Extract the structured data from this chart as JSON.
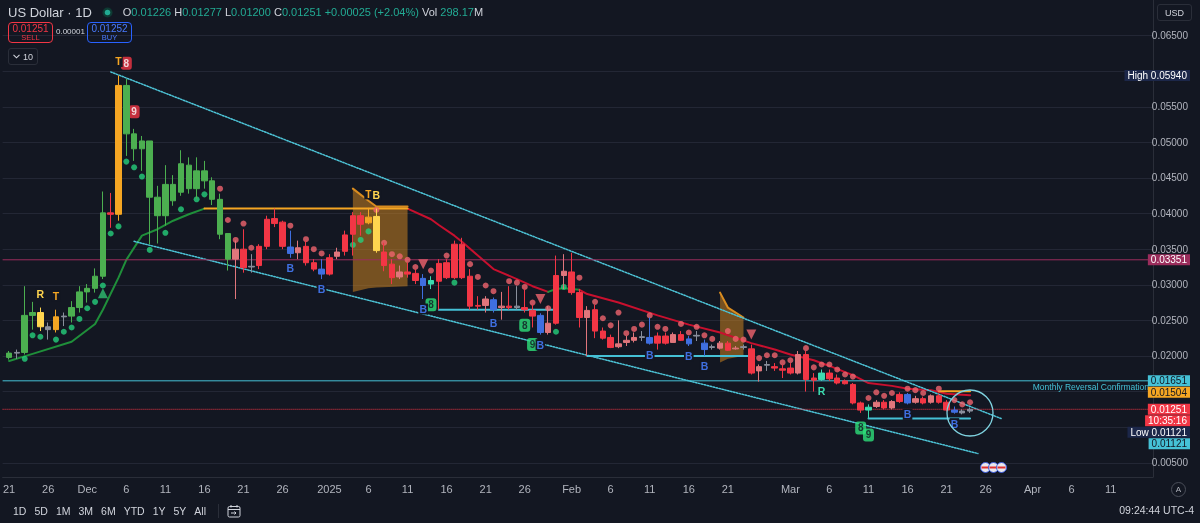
{
  "chart_data": {
    "type": "candlestick",
    "title": "US Dollar · 1D",
    "subtitle": "O0.01226 H0.01277 L0.01200 C0.01251 +0.00025 (+2.04%) Vol 298.17M",
    "x": [
      "2024-11-21",
      "2024-11-22",
      "2024-11-23",
      "2024-11-24",
      "2024-11-25",
      "2024-11-26",
      "2024-11-27",
      "2024-11-28",
      "2024-11-29",
      "2024-11-30",
      "2024-12-01",
      "2024-12-02",
      "2024-12-03",
      "2024-12-04",
      "2024-12-05",
      "2024-12-06",
      "2024-12-07",
      "2024-12-08",
      "2024-12-09",
      "2024-12-10",
      "2024-12-11",
      "2024-12-12",
      "2024-12-13",
      "2024-12-14",
      "2024-12-15",
      "2024-12-16",
      "2024-12-17",
      "2024-12-18",
      "2024-12-19",
      "2024-12-20",
      "2024-12-21",
      "2024-12-22",
      "2024-12-23",
      "2024-12-24",
      "2024-12-25",
      "2024-12-26",
      "2024-12-27",
      "2024-12-28",
      "2024-12-29",
      "2024-12-30",
      "2024-12-31",
      "2025-01-01",
      "2025-01-02",
      "2025-01-03",
      "2025-01-04",
      "2025-01-05",
      "2025-01-06",
      "2025-01-07",
      "2025-01-08",
      "2025-01-09",
      "2025-01-10",
      "2025-01-11",
      "2025-01-12",
      "2025-01-13",
      "2025-01-14",
      "2025-01-15",
      "2025-01-16",
      "2025-01-17",
      "2025-01-18",
      "2025-01-19",
      "2025-01-20",
      "2025-01-21",
      "2025-01-22",
      "2025-01-23",
      "2025-01-24",
      "2025-01-25",
      "2025-01-26",
      "2025-01-27",
      "2025-01-28",
      "2025-01-29",
      "2025-01-30",
      "2025-01-31",
      "2025-02-01",
      "2025-02-02",
      "2025-02-03",
      "2025-02-04",
      "2025-02-05",
      "2025-02-06",
      "2025-02-07",
      "2025-02-08",
      "2025-02-09",
      "2025-02-10",
      "2025-02-11",
      "2025-02-12",
      "2025-02-13",
      "2025-02-14",
      "2025-02-15",
      "2025-02-16",
      "2025-02-17",
      "2025-02-18",
      "2025-02-19",
      "2025-02-20",
      "2025-02-21",
      "2025-02-22",
      "2025-02-23",
      "2025-02-24",
      "2025-02-25",
      "2025-02-26",
      "2025-02-27",
      "2025-02-28",
      "2025-03-01",
      "2025-03-02",
      "2025-03-03",
      "2025-03-04",
      "2025-03-05",
      "2025-03-06",
      "2025-03-07",
      "2025-03-08",
      "2025-03-09",
      "2025-03-10",
      "2025-03-11",
      "2025-03-12",
      "2025-03-13",
      "2025-03-14",
      "2025-03-15",
      "2025-03-16",
      "2025-03-17",
      "2025-03-18",
      "2025-03-19",
      "2025-03-20",
      "2025-03-21",
      "2025-03-22",
      "2025-03-23",
      "2025-03-24"
    ],
    "ohlc": [
      [
        0.0198,
        0.0207,
        0.0195,
        0.0204
      ],
      [
        0.0204,
        0.0209,
        0.0196,
        0.0205
      ],
      [
        0.0205,
        0.0298,
        0.0202,
        0.0257
      ],
      [
        0.0257,
        0.0276,
        0.0237,
        0.0261
      ],
      [
        0.0241,
        0.0268,
        0.0235,
        0.0261
      ],
      [
        0.0237,
        0.0247,
        0.0223,
        0.0241
      ],
      [
        0.0237,
        0.0265,
        0.0233,
        0.0255
      ],
      [
        0.0255,
        0.0261,
        0.0242,
        0.0256
      ],
      [
        0.0256,
        0.0277,
        0.0247,
        0.0268
      ],
      [
        0.0268,
        0.0298,
        0.0261,
        0.029
      ],
      [
        0.029,
        0.0301,
        0.0275,
        0.0295
      ],
      [
        0.0295,
        0.0323,
        0.0289,
        0.0312
      ],
      [
        0.0312,
        0.0431,
        0.0308,
        0.0401
      ],
      [
        0.0401,
        0.0429,
        0.038,
        0.0399
      ],
      [
        0.0399,
        0.0594,
        0.039,
        0.058
      ],
      [
        0.0512,
        0.0589,
        0.0481,
        0.058
      ],
      [
        0.0491,
        0.0519,
        0.0474,
        0.0512
      ],
      [
        0.0491,
        0.0509,
        0.046,
        0.0502
      ],
      [
        0.0423,
        0.0502,
        0.0357,
        0.0502
      ],
      [
        0.0397,
        0.0439,
        0.0358,
        0.0423
      ],
      [
        0.0397,
        0.0468,
        0.0383,
        0.0441
      ],
      [
        0.0418,
        0.0454,
        0.0411,
        0.0441
      ],
      [
        0.043,
        0.0489,
        0.0425,
        0.047
      ],
      [
        0.0435,
        0.0479,
        0.0428,
        0.0468
      ],
      [
        0.0435,
        0.0479,
        0.0421,
        0.046
      ],
      [
        0.0446,
        0.0474,
        0.0435,
        0.046
      ],
      [
        0.042,
        0.0451,
        0.0412,
        0.0446
      ],
      [
        0.0371,
        0.0428,
        0.0364,
        0.042
      ],
      [
        0.0336,
        0.0372,
        0.032,
        0.0372
      ],
      [
        0.035,
        0.0362,
        0.028,
        0.0336
      ],
      [
        0.035,
        0.0378,
        0.0317,
        0.0324
      ],
      [
        0.0325,
        0.0343,
        0.0317,
        0.0326
      ],
      [
        0.0354,
        0.0357,
        0.0322,
        0.0327
      ],
      [
        0.0392,
        0.0397,
        0.035,
        0.0354
      ],
      [
        0.0393,
        0.0407,
        0.0381,
        0.0386
      ],
      [
        0.0388,
        0.039,
        0.035,
        0.0354
      ],
      [
        0.0353,
        0.0376,
        0.0338,
        0.0344
      ],
      [
        0.0352,
        0.0362,
        0.0336,
        0.0345
      ],
      [
        0.0354,
        0.0362,
        0.0327,
        0.0331
      ],
      [
        0.0331,
        0.0336,
        0.0319,
        0.0322
      ],
      [
        0.0322,
        0.0336,
        0.0308,
        0.0315
      ],
      [
        0.0338,
        0.0343,
        0.0313,
        0.0315
      ],
      [
        0.0346,
        0.0352,
        0.0336,
        0.034
      ],
      [
        0.037,
        0.0376,
        0.0341,
        0.0347
      ],
      [
        0.0397,
        0.0402,
        0.0341,
        0.0371
      ],
      [
        0.0397,
        0.0402,
        0.0369,
        0.0385
      ],
      [
        0.0387,
        0.0408,
        0.0385,
        0.0395
      ],
      [
        0.0348,
        0.0407,
        0.0345,
        0.0396
      ],
      [
        0.0346,
        0.0359,
        0.0319,
        0.0327
      ],
      [
        0.0329,
        0.0336,
        0.0301,
        0.031
      ],
      [
        0.0318,
        0.0327,
        0.0308,
        0.0311
      ],
      [
        0.0318,
        0.0331,
        0.031,
        0.0315
      ],
      [
        0.0316,
        0.0322,
        0.0301,
        0.0306
      ],
      [
        0.0309,
        0.0315,
        0.028,
        0.0299
      ],
      [
        0.0301,
        0.0312,
        0.0294,
        0.0306
      ],
      [
        0.033,
        0.0336,
        0.0265,
        0.0305
      ],
      [
        0.0331,
        0.0336,
        0.0308,
        0.031
      ],
      [
        0.0357,
        0.0362,
        0.0308,
        0.031
      ],
      [
        0.0357,
        0.0366,
        0.0308,
        0.031
      ],
      [
        0.0312,
        0.0322,
        0.0265,
        0.027
      ],
      [
        0.0271,
        0.0284,
        0.0265,
        0.027
      ],
      [
        0.028,
        0.0284,
        0.0261,
        0.0271
      ],
      [
        0.0279,
        0.0282,
        0.0261,
        0.0265
      ],
      [
        0.027,
        0.029,
        0.0251,
        0.0268
      ],
      [
        0.027,
        0.0298,
        0.0265,
        0.0268
      ],
      [
        0.0268,
        0.0298,
        0.0265,
        0.027
      ],
      [
        0.0268,
        0.0294,
        0.0261,
        0.0265
      ],
      [
        0.0264,
        0.0272,
        0.024,
        0.0256
      ],
      [
        0.0257,
        0.026,
        0.023,
        0.0233
      ],
      [
        0.0246,
        0.027,
        0.023,
        0.0233
      ],
      [
        0.0313,
        0.0341,
        0.0244,
        0.0246
      ],
      [
        0.0319,
        0.0343,
        0.0294,
        0.0313
      ],
      [
        0.0318,
        0.0345,
        0.0286,
        0.0289
      ],
      [
        0.0289,
        0.0294,
        0.024,
        0.0254
      ],
      [
        0.0264,
        0.027,
        0.02,
        0.0254
      ],
      [
        0.0265,
        0.0272,
        0.0225,
        0.0235
      ],
      [
        0.0235,
        0.024,
        0.0223,
        0.0225
      ],
      [
        0.0226,
        0.023,
        0.0211,
        0.0212
      ],
      [
        0.0217,
        0.025,
        0.0211,
        0.0213
      ],
      [
        0.0222,
        0.0228,
        0.0214,
        0.0219
      ],
      [
        0.0226,
        0.0233,
        0.0219,
        0.0222
      ],
      [
        0.0226,
        0.0235,
        0.0221,
        0.0227
      ],
      [
        0.0226,
        0.0254,
        0.0216,
        0.0218
      ],
      [
        0.0228,
        0.0233,
        0.0209,
        0.0218
      ],
      [
        0.0228,
        0.0233,
        0.0216,
        0.0218
      ],
      [
        0.023,
        0.0233,
        0.0219,
        0.0219
      ],
      [
        0.023,
        0.0235,
        0.0221,
        0.0222
      ],
      [
        0.0224,
        0.0228,
        0.0214,
        0.0217
      ],
      [
        0.0228,
        0.0235,
        0.0221,
        0.0229
      ],
      [
        0.0218,
        0.0223,
        0.02,
        0.0209
      ],
      [
        0.0212,
        0.0216,
        0.0209,
        0.0213
      ],
      [
        0.0218,
        0.0221,
        0.0209,
        0.0211
      ],
      [
        0.0218,
        0.0221,
        0.0207,
        0.0208
      ],
      [
        0.0211,
        0.0214,
        0.0209,
        0.021
      ],
      [
        0.0212,
        0.0216,
        0.0209,
        0.0213
      ],
      [
        0.021,
        0.0216,
        0.0174,
        0.0176
      ],
      [
        0.0185,
        0.0188,
        0.0164,
        0.0179
      ],
      [
        0.0187,
        0.0193,
        0.0179,
        0.0188
      ],
      [
        0.0185,
        0.019,
        0.0179,
        0.0183
      ],
      [
        0.0182,
        0.0188,
        0.0169,
        0.018
      ],
      [
        0.0183,
        0.019,
        0.0174,
        0.0176
      ],
      [
        0.0202,
        0.0207,
        0.0174,
        0.0176
      ],
      [
        0.0202,
        0.0207,
        0.015,
        0.0167
      ],
      [
        0.0169,
        0.0176,
        0.015,
        0.0166
      ],
      [
        0.0167,
        0.0181,
        0.0165,
        0.0176
      ],
      [
        0.0176,
        0.0181,
        0.0165,
        0.0168
      ],
      [
        0.0169,
        0.0174,
        0.016,
        0.0162
      ],
      [
        0.0165,
        0.0167,
        0.016,
        0.0161
      ],
      [
        0.016,
        0.0162,
        0.0132,
        0.0134
      ],
      [
        0.0134,
        0.0136,
        0.012,
        0.0124
      ],
      [
        0.0124,
        0.0132,
        0.01121,
        0.0128
      ],
      [
        0.0135,
        0.0138,
        0.0127,
        0.0129
      ],
      [
        0.0135,
        0.0138,
        0.0125,
        0.0127
      ],
      [
        0.0136,
        0.0138,
        0.0125,
        0.0127
      ],
      [
        0.0146,
        0.0149,
        0.0134,
        0.0136
      ],
      [
        0.0146,
        0.0148,
        0.0132,
        0.0134
      ],
      [
        0.014,
        0.0144,
        0.0133,
        0.0135
      ],
      [
        0.014,
        0.0143,
        0.0132,
        0.0134
      ],
      [
        0.0144,
        0.0146,
        0.0133,
        0.0135
      ],
      [
        0.0144,
        0.0147,
        0.0133,
        0.0135
      ],
      [
        0.0135,
        0.0138,
        0.0122,
        0.0124
      ],
      [
        0.0124,
        0.0129,
        0.0119,
        0.0121
      ],
      [
        0.012,
        0.0125,
        0.0118,
        0.01226
      ],
      [
        0.01226,
        0.01277,
        0.012,
        0.01251
      ]
    ],
    "colors": [
      "#4caf50",
      "#8a8f9c",
      "#4caf50",
      "#4caf50",
      "#ffd54f",
      "#8a8f9c",
      "#f5a623",
      "#8a8f9c",
      "#4caf50",
      "#4caf50",
      "#4caf50",
      "#4caf50",
      "#4caf50",
      "#f23645",
      "#f5a623",
      "#4caf50",
      "#4caf50",
      "#4caf50",
      "#4caf50",
      "#4caf50",
      "#4caf50",
      "#4caf50",
      "#4caf50",
      "#4caf50",
      "#4caf50",
      "#4caf50",
      "#4caf50",
      "#4caf50",
      "#4caf50",
      "#e0767c",
      "#f23645",
      "#8a8f9c",
      "#f23645",
      "#f23645",
      "#f23645",
      "#f23645",
      "#3f6fe0",
      "#e0767c",
      "#f23645",
      "#f23645",
      "#3f6fe0",
      "#f23645",
      "#e0767c",
      "#f23645",
      "#f23645",
      "#f23645",
      "#f5a623",
      "#ffd54f",
      "#f23645",
      "#f23645",
      "#e0767c",
      "#f23645",
      "#f23645",
      "#3f6fe0",
      "#3ddbb0",
      "#f23645",
      "#f23645",
      "#f23645",
      "#f23645",
      "#f23645",
      "#f23645",
      "#e0767c",
      "#3f6fe0",
      "#e0767c",
      "#f23645",
      "#8a8f9c",
      "#f23645",
      "#f23645",
      "#3f6fe0",
      "#e0767c",
      "#f23645",
      "#e0767c",
      "#f23645",
      "#f23645",
      "#e0767c",
      "#f23645",
      "#f23645",
      "#f23645",
      "#e0767c",
      "#e0767c",
      "#e0767c",
      "#8a8f9c",
      "#3f6fe0",
      "#f23645",
      "#f23645",
      "#e0767c",
      "#f23645",
      "#3f6fe0",
      "#8a8f9c",
      "#3f6fe0",
      "#8a8f9c",
      "#e0767c",
      "#f23645",
      "#e0767c",
      "#8a8f9c",
      "#f23645",
      "#e0767c",
      "#8a8f9c",
      "#f23645",
      "#f23645",
      "#f23645",
      "#e0767c",
      "#f23645",
      "#f23645",
      "#3ddbb0",
      "#f23645",
      "#f23645",
      "#f23645",
      "#f23645",
      "#f23645",
      "#3ddbb0",
      "#e0767c",
      "#f23645",
      "#e0767c",
      "#f23645",
      "#3f6fe0",
      "#e0767c",
      "#f23645",
      "#e0767c",
      "#f23645",
      "#f23645",
      "#3f6fe0",
      "#8a8f9c",
      "#8a8f9c"
    ],
    "series": [
      {
        "type": "line",
        "color": "#d98c1f",
        "x": [
          "2025-01-04",
          "2025-01-06",
          "2025-01-07",
          "2025-01-11"
        ],
        "values": [
          0.0435,
          0.0418,
          0.041,
          0.041
        ],
        "upper": [
          0.0435,
          0.0418,
          0.041,
          0.041
        ],
        "lower": [
          0.029,
          0.0295,
          0.0296,
          0.0298
        ]
      },
      {
        "type": "line",
        "color": "#d98c1f",
        "x": [
          "2025-02-20",
          "2025-02-21",
          "2025-02-23"
        ],
        "values": [
          0.0289,
          0.0268,
          0.0254
        ],
        "upper": [
          0.0289,
          0.0268,
          0.0254
        ],
        "lower": [
          0.0191,
          0.0196,
          0.02
        ]
      },
      {
        "type": "line",
        "color": "#1f8f3a",
        "x": [
          "2024-11-21",
          "2024-11-24",
          "2024-11-29",
          "2024-12-02",
          "2024-12-03",
          "2024-12-05",
          "2024-12-06",
          "2024-12-08",
          "2024-12-10",
          "2024-12-12",
          "2024-12-14",
          "2024-12-16"
        ],
        "values": [
          0.0193,
          0.0203,
          0.022,
          0.0245,
          0.0265,
          0.031,
          0.0335,
          0.0369,
          0.0378,
          0.039,
          0.0399,
          0.0407
        ]
      },
      {
        "type": "line",
        "color": "#c8102e",
        "x": [
          "2025-01-11",
          "2025-01-14",
          "2025-01-15",
          "2025-01-17",
          "2025-01-18",
          "2025-01-20",
          "2025-01-22",
          "2025-01-25",
          "2025-01-27",
          "2025-01-29"
        ],
        "values": [
          0.0407,
          0.0392,
          0.0384,
          0.0369,
          0.036,
          0.0341,
          0.0322,
          0.0308,
          0.0298,
          0.029
        ]
      },
      {
        "type": "line",
        "color": "#1f8f3a",
        "x": [
          "2025-01-29",
          "2025-01-30",
          "2025-01-31",
          "2025-02-01",
          "2025-02-02"
        ],
        "values": [
          0.029,
          0.0294,
          0.0295,
          0.0294,
          0.0293
        ]
      },
      {
        "type": "line",
        "color": "#c8102e",
        "x": [
          "2025-02-02",
          "2025-02-03",
          "2025-02-07",
          "2025-02-12",
          "2025-02-16",
          "2025-02-20",
          "2025-02-24",
          "2025-02-27",
          "2025-03-01",
          "2025-03-04",
          "2025-03-06",
          "2025-03-09",
          "2025-03-11",
          "2025-03-14",
          "2025-03-16",
          "2025-03-19",
          "2025-03-21",
          "2025-03-24"
        ],
        "values": [
          0.0293,
          0.0287,
          0.0275,
          0.0257,
          0.0244,
          0.0233,
          0.0218,
          0.0209,
          0.0202,
          0.0194,
          0.0186,
          0.0173,
          0.0162,
          0.0158,
          0.0154,
          0.0152,
          0.0147,
          0.0145
        ]
      },
      {
        "type": "line",
        "color": "#4dc3d6",
        "line_style": "dotted",
        "x": [
          "2024-12-04",
          "2025-03-28"
        ],
        "values": [
          0.0599,
          0.0112
        ]
      },
      {
        "type": "line",
        "color": "#4dc3d6",
        "line_style": "dotted",
        "x": [
          "2024-12-07",
          "2025-03-25"
        ],
        "values": [
          0.0361,
          0.0063
        ]
      },
      {
        "type": "line",
        "color": "#f5a623",
        "x": [
          "2024-12-16",
          "2025-01-11"
        ],
        "values": [
          0.0407,
          0.0407
        ]
      },
      {
        "type": "line",
        "color": "#45c1d6",
        "x": [
          "2025-01-15",
          "2025-01-30"
        ],
        "values": [
          0.0265,
          0.0265
        ]
      },
      {
        "type": "line",
        "color": "#45c1d6",
        "x": [
          "2025-02-03",
          "2025-02-24"
        ],
        "values": [
          0.02,
          0.02
        ]
      },
      {
        "type": "line",
        "color": "#45c1d6",
        "x": [
          "2025-03-11",
          "2025-03-24"
        ],
        "values": [
          0.01121,
          0.01121
        ]
      },
      {
        "type": "line",
        "color": "#f5a623",
        "x": [
          "2025-03-20",
          "2025-03-24"
        ],
        "values": [
          0.01504,
          0.01504
        ]
      },
      {
        "type": "scatter",
        "marker": "circle",
        "color": "#26d07c",
        "x": [
          "2024-11-23",
          "2024-11-24",
          "2024-11-25",
          "2024-11-27",
          "2024-11-28",
          "2024-11-29",
          "2024-11-30",
          "2024-12-01",
          "2024-12-02",
          "2024-12-03",
          "2024-12-04",
          "2024-12-05",
          "2024-12-06",
          "2024-12-07",
          "2024-12-08",
          "2024-12-09",
          "2024-12-11",
          "2024-12-13",
          "2024-12-15",
          "2024-12-16",
          "2025-01-04",
          "2025-01-05",
          "2025-01-06",
          "2025-01-17",
          "2025-01-30",
          "2025-01-31"
        ],
        "values": [
          0.0196,
          0.0229,
          0.0227,
          0.0223,
          0.0234,
          0.024,
          0.0252,
          0.0267,
          0.0276,
          0.0299,
          0.0372,
          0.0382,
          0.0473,
          0.0465,
          0.0452,
          0.0349,
          0.0373,
          0.0406,
          0.042,
          0.0427,
          0.0356,
          0.0363,
          0.0375,
          0.0303,
          0.0234,
          0.0297
        ]
      },
      {
        "type": "scatter",
        "marker": "circle",
        "color": "#f0646e",
        "x": [
          "2024-12-18",
          "2024-12-19",
          "2024-12-20",
          "2024-12-21",
          "2024-12-22",
          "2024-12-27",
          "2024-12-29",
          "2024-12-30",
          "2024-12-31",
          "2025-01-07",
          "2025-01-08",
          "2025-01-09",
          "2025-01-10",
          "2025-01-11",
          "2025-01-12",
          "2025-01-14",
          "2025-01-16",
          "2025-01-19",
          "2025-01-20",
          "2025-01-21",
          "2025-01-22",
          "2025-01-24",
          "2025-01-25",
          "2025-01-26",
          "2025-01-27",
          "2025-01-29",
          "2025-02-02",
          "2025-02-04",
          "2025-02-05",
          "2025-02-06",
          "2025-02-07",
          "2025-02-08",
          "2025-02-09",
          "2025-02-10",
          "2025-02-11",
          "2025-02-12",
          "2025-02-13",
          "2025-02-15",
          "2025-02-16",
          "2025-02-17",
          "2025-02-18",
          "2025-02-19",
          "2025-02-21",
          "2025-02-22",
          "2025-02-23",
          "2025-02-25",
          "2025-02-26",
          "2025-02-27",
          "2025-02-28",
          "2025-03-01",
          "2025-03-03",
          "2025-03-04",
          "2025-03-05",
          "2025-03-06",
          "2025-03-07",
          "2025-03-08",
          "2025-03-09",
          "2025-03-11",
          "2025-03-12",
          "2025-03-13",
          "2025-03-14",
          "2025-03-16",
          "2025-03-17",
          "2025-03-18",
          "2025-03-20",
          "2025-03-22",
          "2025-03-23",
          "2025-03-24"
        ],
        "values": [
          0.0435,
          0.0391,
          0.0363,
          0.0386,
          0.0352,
          0.0383,
          0.0364,
          0.035,
          0.0344,
          0.0405,
          0.0359,
          0.0343,
          0.034,
          0.0335,
          0.0325,
          0.032,
          0.0341,
          0.0329,
          0.0311,
          0.0299,
          0.0291,
          0.0305,
          0.0303,
          0.0297,
          0.0275,
          0.0267,
          0.031,
          0.0276,
          0.0253,
          0.0243,
          0.0261,
          0.0232,
          0.0238,
          0.0244,
          0.0257,
          0.0241,
          0.0238,
          0.0245,
          0.0233,
          0.0241,
          0.0229,
          0.0224,
          0.0235,
          0.0224,
          0.0223,
          0.0197,
          0.0201,
          0.0201,
          0.0191,
          0.0194,
          0.0211,
          0.0184,
          0.0188,
          0.0188,
          0.0181,
          0.0174,
          0.0171,
          0.0141,
          0.0149,
          0.0144,
          0.0148,
          0.0154,
          0.0152,
          0.0148,
          0.0154,
          0.0138,
          0.0132,
          0.0135
        ]
      },
      {
        "type": "scatter",
        "marker": "triangle",
        "color": "#2fbf71",
        "x": [
          "2024-12-03"
        ],
        "values": [
          0.0288
        ]
      },
      {
        "type": "scatter",
        "marker": "triangle",
        "color": "#f0646e",
        "x": [
          "2025-01-13",
          "2025-01-28",
          "2025-02-24"
        ],
        "values": [
          0.0329,
          0.028,
          0.023
        ]
      },
      {
        "type": "scatter",
        "marker": "square",
        "name": "8",
        "color": "#f23645",
        "x": [
          "2024-12-06"
        ],
        "values": [
          0.0611
        ]
      },
      {
        "type": "scatter",
        "marker": "square",
        "name": "9",
        "color": "#f23645",
        "x": [
          "2024-12-07"
        ],
        "values": [
          0.0543
        ]
      },
      {
        "type": "scatter",
        "marker": "square",
        "name": "8",
        "color": "#2ee07a",
        "x": [
          "2025-01-14",
          "2025-01-26",
          "2025-03-10"
        ],
        "values": [
          0.0272,
          0.0243,
          0.0099
        ]
      },
      {
        "type": "scatter",
        "marker": "square",
        "name": "9",
        "color": "#2ee07a",
        "x": [
          "2025-01-27",
          "2025-03-11"
        ],
        "values": [
          0.0216,
          0.0089
        ]
      }
    ],
    "ref_lines": [
      {
        "axis": "y",
        "value": 0.03351,
        "label": "0.03351",
        "color": "#9b2d5c"
      },
      {
        "axis": "y",
        "value": 0.01651,
        "label": "0.01651",
        "color": "#45c1d6"
      },
      {
        "axis": "y",
        "value": 0.01251,
        "label": "0.01251",
        "color": "#f23645",
        "line_style": "dotted"
      }
    ],
    "annotations": [
      "0.01251",
      "SELL",
      "0.00001",
      "0.01252",
      "BUY",
      "10",
      "USD",
      "1D",
      "5D",
      "1M",
      "3M",
      "6M",
      "YTD",
      "1Y",
      "5Y",
      "All",
      "09:24:44 UTC-4",
      "A",
      "High 0.05940",
      "10:35:16",
      "Low 0.01121",
      "0.01121",
      "0.01504",
      "Monthly Reversal Confirmation",
      {
        "text": "R",
        "x": "2024-11-25",
        "y": 0.0268
      },
      {
        "text": "T",
        "x": "2024-11-27",
        "y": 0.0265
      },
      {
        "text": "T",
        "x": "2024-12-05",
        "y": 0.0594
      },
      {
        "text": "B",
        "x": "2024-12-27",
        "y": 0.0338
      },
      {
        "text": "B",
        "x": "2024-12-31",
        "y": 0.0308
      },
      {
        "text": "T",
        "x": "2025-01-06",
        "y": 0.0408
      },
      {
        "text": "B",
        "x": "2025-01-07",
        "y": 0.0407
      },
      {
        "text": "B",
        "x": "2025-01-13",
        "y": 0.028
      },
      {
        "text": "B",
        "x": "2025-01-22",
        "y": 0.0261
      },
      {
        "text": "B",
        "x": "2025-01-28",
        "y": 0.023
      },
      {
        "text": "B",
        "x": "2025-02-11",
        "y": 0.0216
      },
      {
        "text": "B",
        "x": "2025-02-16",
        "y": 0.0214
      },
      {
        "text": "B",
        "x": "2025-02-18",
        "y": 0.02
      },
      {
        "text": "R",
        "x": "2025-03-05",
        "y": 0.0165
      },
      {
        "text": "B",
        "x": "2025-03-16",
        "y": 0.0132
      },
      {
        "text": "B",
        "x": "2025-03-22",
        "y": 0.0119
      }
    ],
    "xlim": [
      "2024-11-20T04:00",
      "2025-04-16T10:00"
    ],
    "xticks": [
      {
        "value": "2024-11-21",
        "label": "21"
      },
      {
        "value": "2024-11-26",
        "label": "26"
      },
      {
        "value": "2024-12-01",
        "label": "Dec"
      },
      {
        "value": "2024-12-06",
        "label": "6"
      },
      {
        "value": "2024-12-11",
        "label": "11"
      },
      {
        "value": "2024-12-16",
        "label": "16"
      },
      {
        "value": "2024-12-21",
        "label": "21"
      },
      {
        "value": "2024-12-26",
        "label": "26"
      },
      {
        "value": "2025-01-01",
        "label": "2025"
      },
      {
        "value": "2025-01-06",
        "label": "6"
      },
      {
        "value": "2025-01-11",
        "label": "11"
      },
      {
        "value": "2025-01-16",
        "label": "16"
      },
      {
        "value": "2025-01-21",
        "label": "21"
      },
      {
        "value": "2025-01-26",
        "label": "26"
      },
      {
        "value": "2025-02-01",
        "label": "Feb"
      },
      {
        "value": "2025-02-06",
        "label": "6"
      },
      {
        "value": "2025-02-11",
        "label": "11"
      },
      {
        "value": "2025-02-16",
        "label": "16"
      },
      {
        "value": "2025-02-21",
        "label": "21"
      },
      {
        "value": "2025-03-01",
        "label": "Mar"
      },
      {
        "value": "2025-03-06",
        "label": "6"
      },
      {
        "value": "2025-03-11",
        "label": "11"
      },
      {
        "value": "2025-03-16",
        "label": "16"
      },
      {
        "value": "2025-03-21",
        "label": "21"
      },
      {
        "value": "2025-03-26",
        "label": "26"
      },
      {
        "value": "2025-04-01",
        "label": "Apr"
      },
      {
        "value": "2025-04-06",
        "label": "6"
      },
      {
        "value": "2025-04-11",
        "label": "11"
      }
    ],
    "ylim": [
      0.003,
      0.07
    ],
    "yticks": [
      {
        "value": 0.005,
        "label": "0.00500"
      },
      {
        "value": 0.01,
        "label": null
      },
      {
        "value": 0.015,
        "label": null
      },
      {
        "value": 0.02,
        "label": "0.02000"
      },
      {
        "value": 0.025,
        "label": "0.02500"
      },
      {
        "value": 0.03,
        "label": "0.03000"
      },
      {
        "value": 0.035,
        "label": "0.03500"
      },
      {
        "value": 0.04,
        "label": "0.04000"
      },
      {
        "value": 0.045,
        "label": "0.04500"
      },
      {
        "value": 0.05,
        "label": "0.05000"
      },
      {
        "value": 0.055,
        "label": "0.05500"
      },
      {
        "value": 0.06,
        "label": null
      },
      {
        "value": 0.065,
        "label": "0.06500"
      }
    ],
    "grid": "y"
  }
}
